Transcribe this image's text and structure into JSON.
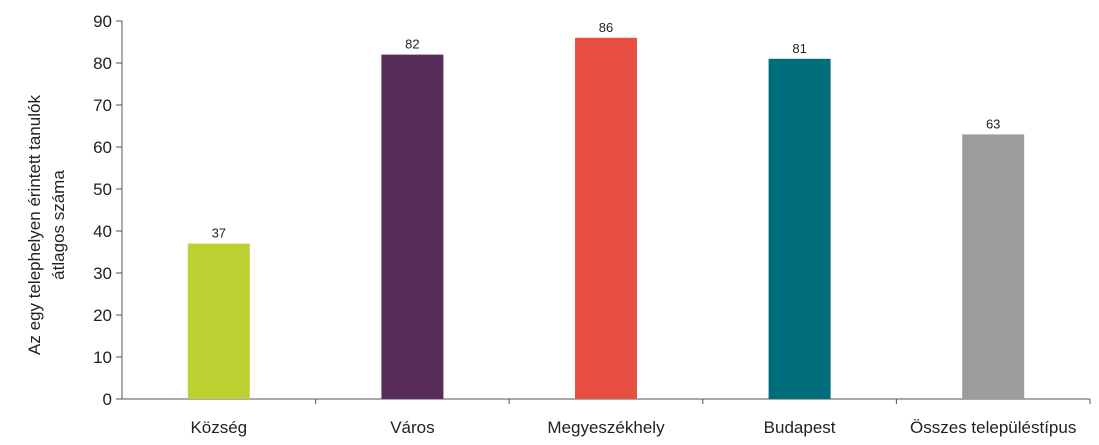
{
  "chart_data": {
    "type": "bar",
    "title": "",
    "xlabel": "",
    "ylabel_lines": [
      "Az egy telephelyen érintett tanulók",
      "átlagos száma"
    ],
    "categories": [
      "Község",
      "Város",
      "Megyeszékhely",
      "Budapest",
      "Összes településtípus"
    ],
    "values": [
      37,
      82,
      86,
      81,
      63
    ],
    "data_labels": [
      "37",
      "82",
      "86",
      "81",
      "63"
    ],
    "colors": [
      "#bdd232",
      "#572c58",
      "#e84f43",
      "#006e7a",
      "#9b9c9b"
    ],
    "ylim": [
      0,
      90
    ],
    "yticks": [
      0,
      10,
      20,
      30,
      40,
      50,
      60,
      70,
      80,
      90
    ],
    "grid": false,
    "legend": "none"
  }
}
